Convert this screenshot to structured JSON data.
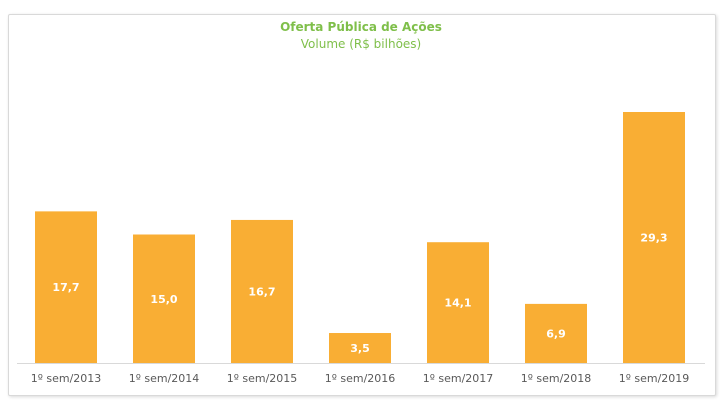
{
  "chart_data": {
    "type": "bar",
    "title": "Oferta Pública de Ações",
    "subtitle": "Volume (R$ bilhões)",
    "categories": [
      "1º sem/2013",
      "1º sem/2014",
      "1º sem/2015",
      "1º sem/2016",
      "1º sem/2017",
      "1º sem/2018",
      "1º sem/2019"
    ],
    "values": [
      17.7,
      15.0,
      16.7,
      3.5,
      14.1,
      6.9,
      29.3
    ],
    "data_labels": [
      "17,7",
      "15,0",
      "16,7",
      "3,5",
      "14,1",
      "6,9",
      "29,3"
    ],
    "xlabel": "",
    "ylabel": "",
    "ylim": [
      0,
      30
    ],
    "grid": false,
    "legend": "none",
    "colors": {
      "bar": "#F9AE34",
      "title": "#7FBF4A",
      "label": "#ffffff",
      "axis_text": "#595959"
    }
  }
}
